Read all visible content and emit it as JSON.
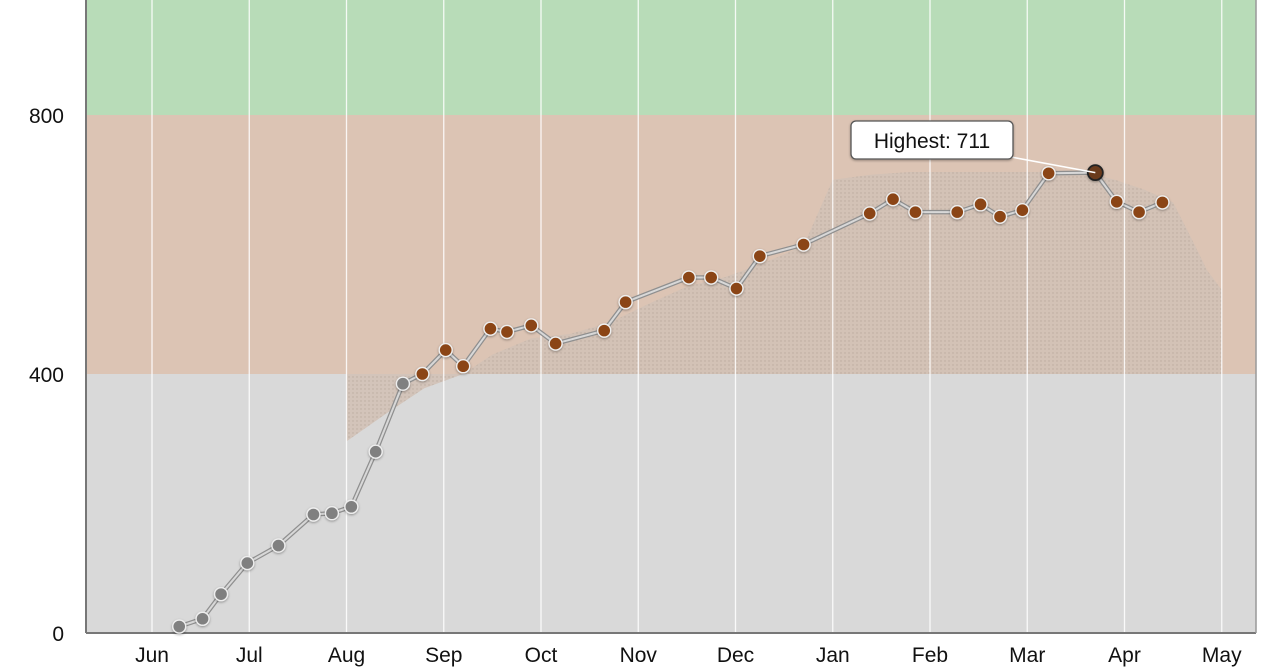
{
  "chart_data": {
    "type": "line",
    "title": "",
    "xlabel": "",
    "ylabel": "",
    "x_tick_labels": [
      "Jun",
      "Jul",
      "Aug",
      "Sep",
      "Oct",
      "Nov",
      "Dec",
      "Jan",
      "Feb",
      "Mar",
      "Apr",
      "May"
    ],
    "y_ticks": [
      0,
      400,
      800
    ],
    "y_tick_labels": [
      "0",
      "400",
      "800"
    ],
    "ylim": [
      0,
      1000
    ],
    "grid": true,
    "legend": "none",
    "bands": [
      {
        "from": 0,
        "to": 400,
        "color": "#d9d9d9"
      },
      {
        "from": 400,
        "to": 800,
        "color": "#dcc4b4"
      },
      {
        "from": 800,
        "to": 1000,
        "color": "#b8dcb8"
      }
    ],
    "colors": {
      "line": "#9a9a9a",
      "marker_below_400": "#808080",
      "marker_400_plus": "#8b4513",
      "marker_highlight": "#6b3a1f",
      "area_fill": "#cdbcb1"
    },
    "series": [
      {
        "x": [
          0.28,
          0.52,
          0.71,
          0.98,
          1.3,
          1.66,
          1.85,
          2.05,
          2.3,
          2.58,
          2.78,
          3.02,
          3.2,
          3.48,
          3.65,
          3.9,
          4.15,
          4.65,
          4.87,
          5.52,
          5.75,
          6.01,
          6.25,
          6.7,
          7.38,
          7.62,
          7.85,
          8.28,
          8.52,
          8.72,
          8.95,
          9.22,
          9.7,
          9.92,
          10.15,
          10.39
        ],
        "y": [
          10,
          22,
          60,
          108,
          135,
          183,
          185,
          195,
          280,
          385,
          400,
          437,
          412,
          470,
          465,
          475,
          447,
          467,
          511,
          549,
          549,
          532,
          582,
          600,
          648,
          670,
          650,
          650,
          662,
          643,
          653,
          710,
          711,
          666,
          650,
          665
        ]
      }
    ],
    "highlight": {
      "index": 32,
      "label": "Highest: 711"
    },
    "shaded_area": {
      "upper": [
        [
          2.0,
          296
        ],
        [
          2.4,
          338
        ],
        [
          2.8,
          378
        ],
        [
          3.2,
          400
        ],
        [
          3.5,
          430
        ],
        [
          3.9,
          455
        ],
        [
          4.3,
          462
        ],
        [
          4.7,
          479
        ],
        [
          5.1,
          508
        ],
        [
          5.5,
          535
        ],
        [
          5.9,
          550
        ],
        [
          6.3,
          572
        ],
        [
          6.7,
          598
        ],
        [
          7.0,
          700
        ],
        [
          7.4,
          708
        ],
        [
          7.8,
          712
        ],
        [
          8.2,
          712
        ],
        [
          8.6,
          712
        ],
        [
          8.9,
          712
        ],
        [
          9.2,
          712
        ],
        [
          9.6,
          711
        ],
        [
          9.9,
          700
        ],
        [
          10.2,
          685
        ],
        [
          10.5,
          665
        ],
        [
          10.7,
          606
        ],
        [
          10.85,
          560
        ],
        [
          11.0,
          530
        ]
      ],
      "base": 400
    }
  }
}
